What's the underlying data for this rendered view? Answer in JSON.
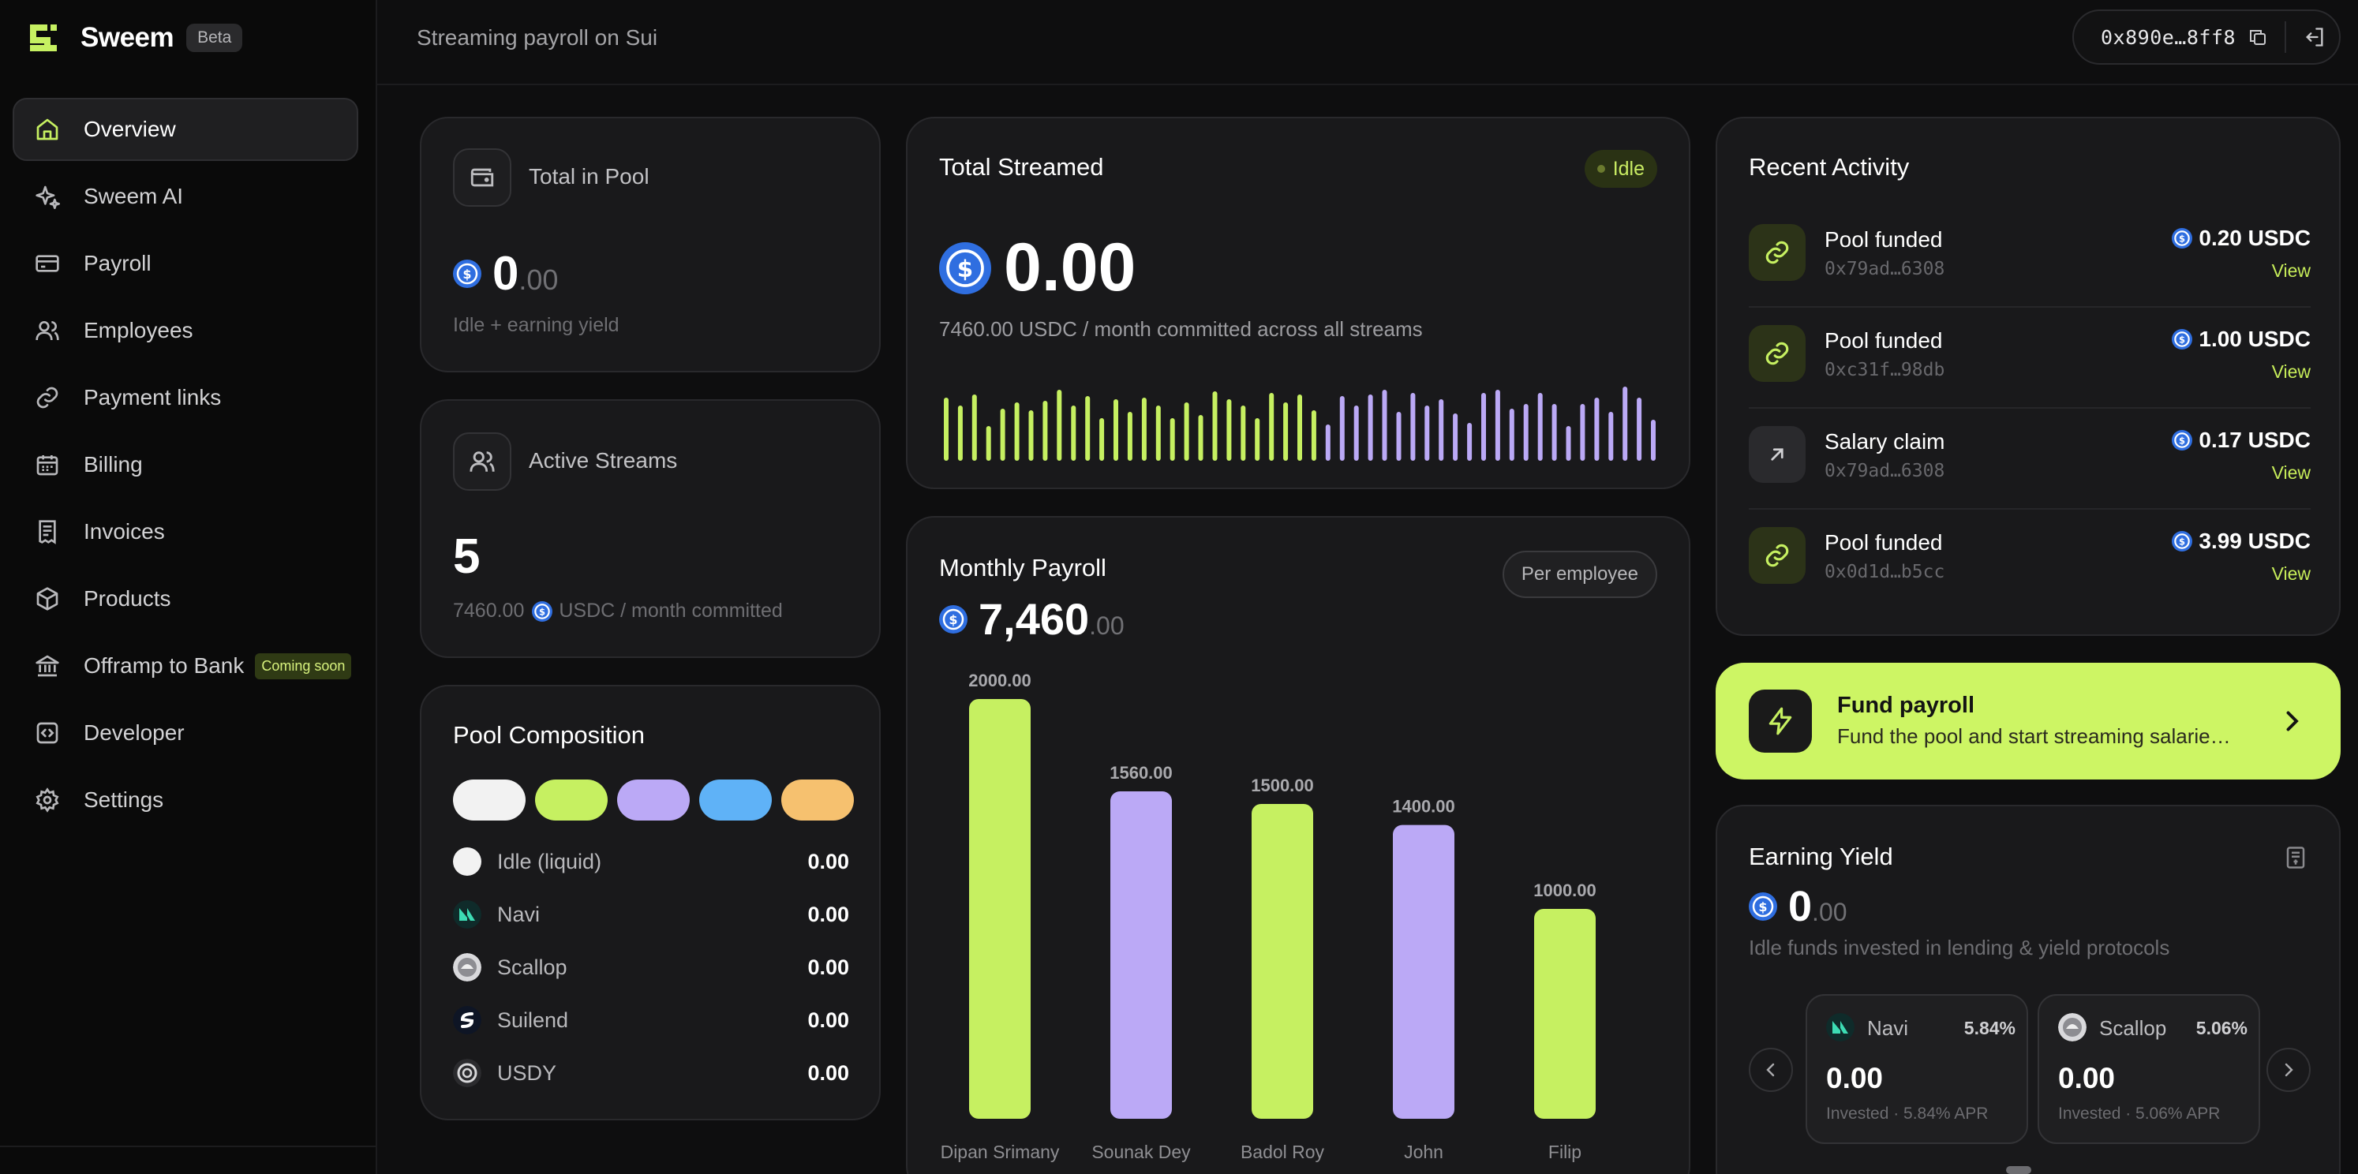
{
  "brand": {
    "name": "Sweem",
    "badge": "Beta"
  },
  "sidebar": {
    "items": [
      {
        "label": "Overview",
        "icon": "home-icon",
        "active": true
      },
      {
        "label": "Sweem AI",
        "icon": "sparkle-icon"
      },
      {
        "label": "Payroll",
        "icon": "card-icon"
      },
      {
        "label": "Employees",
        "icon": "users-icon"
      },
      {
        "label": "Payment links",
        "icon": "link-icon"
      },
      {
        "label": "Billing",
        "icon": "calendar-icon"
      },
      {
        "label": "Invoices",
        "icon": "receipt-icon"
      },
      {
        "label": "Products",
        "icon": "box-icon"
      },
      {
        "label": "Offramp to Bank",
        "icon": "bank-icon",
        "badge": "Coming soon"
      },
      {
        "label": "Developer",
        "icon": "code-icon"
      },
      {
        "label": "Settings",
        "icon": "gear-icon"
      }
    ]
  },
  "header": {
    "title": "Streaming payroll on Sui",
    "wallet": "0x890e…8ff8"
  },
  "pool_total": {
    "label": "Total in Pool",
    "value": "0",
    "decimals": ".00",
    "sub": "Idle + earning yield"
  },
  "active_streams": {
    "label": "Active Streams",
    "value": "5",
    "sub_amount": "7460.00",
    "sub_text": "USDC / month committed"
  },
  "composition": {
    "title": "Pool Composition",
    "pill_colors": [
      "#f2f2f2",
      "#c6f061",
      "#bba9f6",
      "#5fb2f7",
      "#f6c16f"
    ],
    "rows": [
      {
        "name": "Idle (liquid)",
        "value": "0.00"
      },
      {
        "name": "Navi",
        "value": "0.00"
      },
      {
        "name": "Scallop",
        "value": "0.00"
      },
      {
        "name": "Suilend",
        "value": "0.00"
      },
      {
        "name": "USDY",
        "value": "0.00"
      }
    ]
  },
  "streamed": {
    "title": "Total Streamed",
    "status": "Idle",
    "value": "0.00",
    "sub": "7460.00 USDC / month committed across all streams",
    "accent_green": "#c6f061",
    "accent_purple": "#bba9f6"
  },
  "payroll": {
    "title": "Monthly Payroll",
    "toggle": "Per employee",
    "total": "7,460",
    "decimals": ".00"
  },
  "chart_data": {
    "type": "bar",
    "categories": [
      "Dipan Srimany",
      "Sounak Dey",
      "Badol Roy",
      "John",
      "Filip"
    ],
    "values": [
      2000,
      1560,
      1500,
      1400,
      1000
    ],
    "labels": [
      "2000.00",
      "1560.00",
      "1500.00",
      "1400.00",
      "1000.00"
    ],
    "colors": [
      "#c6f061",
      "#bba9f6",
      "#c6f061",
      "#bba9f6",
      "#c6f061"
    ],
    "ylim": [
      0,
      2000
    ],
    "grid": false
  },
  "activity": {
    "title": "Recent Activity",
    "items": [
      {
        "title": "Pool funded",
        "addr": "0x79ad…6308",
        "amount": "0.20 USDC",
        "action": "View",
        "kind": "fund"
      },
      {
        "title": "Pool funded",
        "addr": "0xc31f…98db",
        "amount": "1.00 USDC",
        "action": "View",
        "kind": "fund"
      },
      {
        "title": "Salary claim",
        "addr": "0x79ad…6308",
        "amount": "0.17 USDC",
        "action": "View",
        "kind": "claim"
      },
      {
        "title": "Pool funded",
        "addr": "0x0d1d…b5cc",
        "amount": "3.99 USDC",
        "action": "View",
        "kind": "fund"
      }
    ]
  },
  "fund_cta": {
    "title": "Fund payroll",
    "sub": "Fund the pool and start streaming salarie…"
  },
  "yield": {
    "title": "Earning Yield",
    "value": "0",
    "decimals": ".00",
    "sub": "Idle funds invested in lending & yield protocols",
    "protocols": [
      {
        "name": "Navi",
        "apr": "5.84%",
        "value": "0.00",
        "sub": "Invested · 5.84% APR"
      },
      {
        "name": "Scallop",
        "apr": "5.06%",
        "value": "0.00",
        "sub": "Invested · 5.06% APR"
      }
    ]
  }
}
